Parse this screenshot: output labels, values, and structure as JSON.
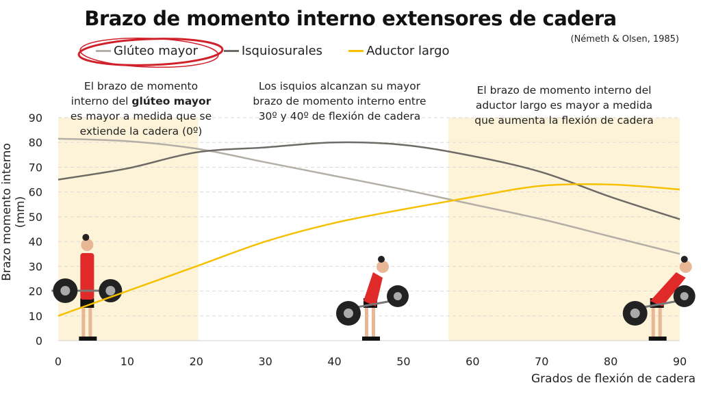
{
  "chart_data": {
    "type": "line",
    "title": "Brazo de momento interno extensores de cadera",
    "source": "(Németh & Olsen, 1985)",
    "xlabel": "Grados de flexión de cadera",
    "ylabel": "Brazo momento interno (mm)",
    "xlim": [
      0,
      90
    ],
    "ylim": [
      0,
      90
    ],
    "x_ticks": [
      "0",
      "10",
      "20",
      "30",
      "40",
      "50",
      "60",
      "70",
      "80",
      "90"
    ],
    "y_ticks": [
      "0",
      "10",
      "20",
      "30",
      "40",
      "50",
      "60",
      "70",
      "80",
      "90"
    ],
    "grid": "horizontal dashed",
    "legend_position": "top",
    "x": [
      0,
      10,
      20,
      30,
      40,
      50,
      60,
      70,
      80,
      90
    ],
    "series": [
      {
        "name": "Glúteo mayor",
        "color": "#b3aea6",
        "values": [
          81.5,
          80.5,
          77.5,
          72,
          66.5,
          61,
          55,
          49,
          42,
          35
        ]
      },
      {
        "name": "Isquiosurales",
        "color": "#6e6a66",
        "values": [
          65,
          69.5,
          76,
          78,
          80,
          79,
          74.5,
          68,
          58,
          49
        ]
      },
      {
        "name": "Aductor largo",
        "color": "#f5c000",
        "values": [
          10,
          20,
          30,
          40,
          47.5,
          53,
          58,
          62.5,
          63,
          61
        ]
      }
    ],
    "shaded_regions": [
      {
        "from": 0,
        "to": 20.3,
        "color": "#fdf3d8"
      },
      {
        "from": 56.5,
        "to": 90,
        "color": "#fdf3d8"
      }
    ],
    "highlight_color": "#d0202a",
    "annotations": [
      {
        "lines": [
          "El brazo de momento",
          "interno del |glúteo mayor|",
          "es mayor a medida que se",
          "extiende la cadera (0º)"
        ]
      },
      {
        "lines": [
          "Los isquios alcanzan su mayor",
          "brazo de momento interno entre",
          "30º y 40º de flexión de cadera"
        ]
      },
      {
        "lines": [
          "El brazo de momento interno del",
          "aductor largo es mayor a medida",
          "que aumenta la flexión de cadera"
        ]
      }
    ],
    "annotation_bold": "glúteo mayor"
  }
}
